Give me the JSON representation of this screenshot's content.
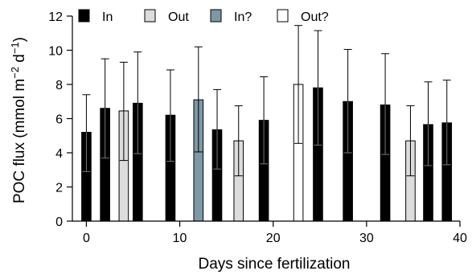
{
  "chart_data": {
    "type": "bar",
    "xlabel": "Days since fertilization",
    "ylabel_base": "POC flux (mmol m",
    "ylabel_exp1": "−2",
    "ylabel_mid": " d",
    "ylabel_exp2": "−1",
    "ylabel_end": ")",
    "xlim": [
      -1.5,
      40
    ],
    "ylim": [
      0,
      12
    ],
    "x_ticks": [
      0,
      10,
      20,
      30,
      40
    ],
    "y_ticks": [
      0,
      2,
      4,
      6,
      8,
      10,
      12
    ],
    "bar_width_days": 1.0,
    "legend": [
      {
        "key": "In",
        "label": "In",
        "color": "#000000"
      },
      {
        "key": "Out",
        "label": "Out",
        "color": "#dcdcdc"
      },
      {
        "key": "InQ",
        "label": "In?",
        "color": "#7f98a6"
      },
      {
        "key": "OutQ",
        "label": "Out?",
        "color": "#ffffff"
      }
    ],
    "bars": [
      {
        "day": 0,
        "value": 5.2,
        "error_upper": 7.4,
        "error_lower": 2.9,
        "category": "In"
      },
      {
        "day": 2,
        "value": 6.6,
        "error_upper": 9.5,
        "error_lower": 3.7,
        "category": "In"
      },
      {
        "day": 4,
        "value": 6.45,
        "error_upper": 9.3,
        "error_lower": 3.55,
        "category": "Out"
      },
      {
        "day": 5.5,
        "value": 6.9,
        "error_upper": 9.9,
        "error_lower": 3.95,
        "category": "In"
      },
      {
        "day": 9,
        "value": 6.2,
        "error_upper": 8.85,
        "error_lower": 3.5,
        "category": "In"
      },
      {
        "day": 12,
        "value": 7.1,
        "error_upper": 10.2,
        "error_lower": 4.05,
        "category": "InQ"
      },
      {
        "day": 14,
        "value": 5.35,
        "error_upper": 7.7,
        "error_lower": 3.05,
        "category": "In"
      },
      {
        "day": 16.3,
        "value": 4.7,
        "error_upper": 6.75,
        "error_lower": 2.65,
        "category": "Out"
      },
      {
        "day": 19,
        "value": 5.9,
        "error_upper": 8.45,
        "error_lower": 3.35,
        "category": "In"
      },
      {
        "day": 22.7,
        "value": 8.0,
        "error_upper": 11.45,
        "error_lower": 4.55,
        "category": "OutQ"
      },
      {
        "day": 24.8,
        "value": 7.8,
        "error_upper": 11.15,
        "error_lower": 4.45,
        "category": "In"
      },
      {
        "day": 28,
        "value": 7.0,
        "error_upper": 10.05,
        "error_lower": 4.0,
        "category": "In"
      },
      {
        "day": 32,
        "value": 6.8,
        "error_upper": 9.8,
        "error_lower": 3.9,
        "category": "In"
      },
      {
        "day": 34.7,
        "value": 4.7,
        "error_upper": 6.75,
        "error_lower": 2.65,
        "category": "Out"
      },
      {
        "day": 36.6,
        "value": 5.65,
        "error_upper": 8.15,
        "error_lower": 3.25,
        "category": "In"
      },
      {
        "day": 38.6,
        "value": 5.75,
        "error_upper": 8.25,
        "error_lower": 3.3,
        "category": "In"
      }
    ]
  }
}
